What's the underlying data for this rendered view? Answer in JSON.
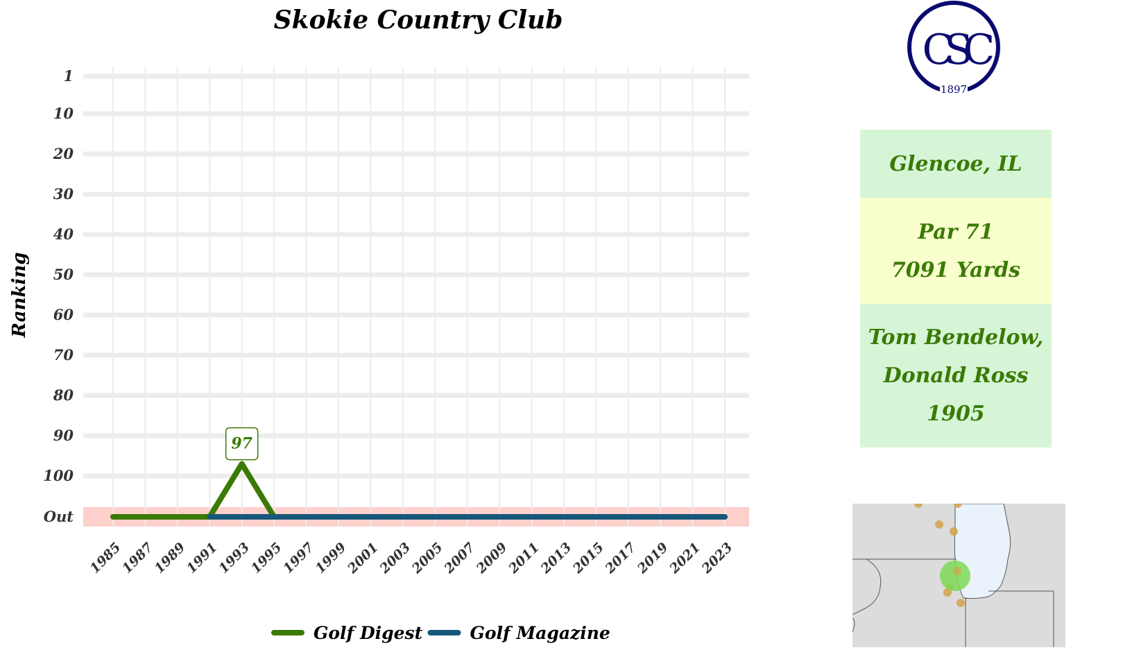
{
  "chart_data": {
    "type": "line",
    "title": "Skokie Country Club",
    "ylabel": "Ranking",
    "xlabel": "",
    "x_ticks": [
      "1985",
      "1987",
      "1989",
      "1991",
      "1993",
      "1995",
      "1997",
      "1999",
      "2001",
      "2003",
      "2005",
      "2007",
      "2009",
      "2011",
      "2013",
      "2015",
      "2017",
      "2019",
      "2021",
      "2023"
    ],
    "y_ticks": [
      "1",
      "10",
      "20",
      "30",
      "40",
      "50",
      "60",
      "70",
      "80",
      "90",
      "100",
      "Out"
    ],
    "y_reversed": true,
    "out_band_color": "#fdd0cc",
    "grid": true,
    "legend_position": "bottom",
    "series": [
      {
        "name": "Golf Digest",
        "color": "#3a7a05",
        "points": [
          {
            "x": 1985,
            "y": "Out"
          },
          {
            "x": 1991,
            "y": "Out"
          },
          {
            "x": 1993,
            "y": 97
          },
          {
            "x": 1995,
            "y": "Out"
          },
          {
            "x": 2023,
            "y": "Out"
          }
        ]
      },
      {
        "name": "Golf Magazine",
        "color": "#17577a",
        "points": [
          {
            "x": 1991,
            "y": "Out"
          },
          {
            "x": 2023,
            "y": "Out"
          }
        ]
      }
    ],
    "annotations": [
      {
        "x": 1993,
        "y": 97,
        "text": "97",
        "color": "#3a7a05"
      }
    ]
  },
  "logo": {
    "letters": "CSC",
    "year": "1897",
    "color": "#0a0a6e"
  },
  "info": {
    "location": "Glencoe, IL",
    "par": "Par 71",
    "yards": "7091 Yards",
    "architects": "Tom Bendelow,",
    "architects2": "Donald Ross",
    "year": "1905",
    "text_color": "#3a7a05"
  },
  "map": {
    "land_color": "#dcdcdc",
    "water_color": "#eaf3fb",
    "highlight_color": "#7ed957",
    "marker_color": "#d4a24a"
  }
}
